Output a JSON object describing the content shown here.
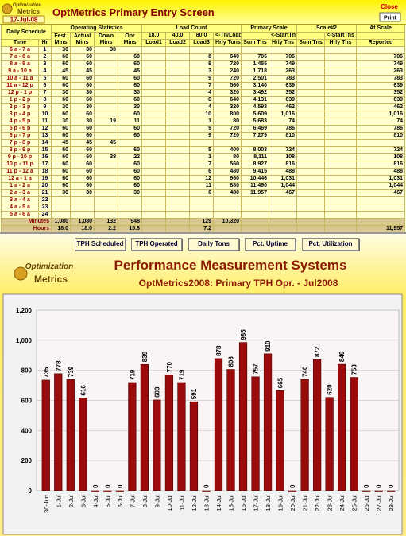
{
  "header": {
    "logo_line1": "Optimization",
    "logo_line2": "Metrics",
    "date": "17-Jul-08",
    "title": "OptMetrics Primary Entry Screen",
    "close": "Close",
    "print": "Print"
  },
  "table": {
    "groups": [
      "Daily Schedule",
      "Operating Statistics",
      "Load Count",
      "Primary Scale",
      "Scale#2",
      "At Scale"
    ],
    "load_values": [
      "18.0",
      "40.0",
      "80.0"
    ],
    "arrows": [
      "<-Tn/Load",
      "<-StartTns",
      "<-StartTns"
    ],
    "columns": [
      "Time",
      "Hr",
      "Fest. Mins",
      "Actual Mins",
      "Down Mins",
      "Opr Mins",
      "Load1",
      "Load2",
      "Load3",
      "Hrly Tons",
      "Sum Tns",
      "Hrly Tns",
      "Sum Tns",
      "Hrly Tns",
      "Reported"
    ],
    "rows": [
      [
        "6 a - 7 a",
        "1",
        "30",
        "30",
        "30",
        null,
        null,
        null,
        null,
        null,
        null,
        null,
        null,
        null,
        null
      ],
      [
        "7 a - 8 a",
        "2",
        "60",
        "60",
        null,
        "60",
        null,
        null,
        "8",
        "640",
        "706",
        "706",
        null,
        null,
        "706"
      ],
      [
        "8 a - 9 a",
        "3",
        "60",
        "60",
        null,
        "60",
        null,
        null,
        "9",
        "720",
        "1,455",
        "749",
        null,
        null,
        "749"
      ],
      [
        "9 a - 10 a",
        "4",
        "45",
        "45",
        null,
        "45",
        null,
        null,
        "3",
        "240",
        "1,718",
        "263",
        null,
        null,
        "263"
      ],
      [
        "10 a - 11 a",
        "5",
        "60",
        "60",
        null,
        "60",
        null,
        null,
        "9",
        "720",
        "2,501",
        "783",
        null,
        null,
        "783"
      ],
      [
        "11 a - 12 p",
        "6",
        "60",
        "60",
        null,
        "60",
        null,
        null,
        "7",
        "560",
        "3,140",
        "639",
        null,
        null,
        "639"
      ],
      [
        "12 p - 1 p",
        "7",
        "30",
        "30",
        null,
        "30",
        null,
        null,
        "4",
        "320",
        "3,492",
        "352",
        null,
        null,
        "352"
      ],
      [
        "1 p - 2 p",
        "8",
        "60",
        "60",
        null,
        "60",
        null,
        null,
        "8",
        "640",
        "4,131",
        "639",
        null,
        null,
        "639"
      ],
      [
        "2 p - 3 p",
        "9",
        "30",
        "30",
        null,
        "30",
        null,
        null,
        "4",
        "320",
        "4,593",
        "462",
        null,
        null,
        "462"
      ],
      [
        "3 p - 4 p",
        "10",
        "60",
        "60",
        null,
        "60",
        null,
        null,
        "10",
        "800",
        "5,609",
        "1,016",
        null,
        null,
        "1,016"
      ],
      [
        "4 p - 5 p",
        "11",
        "30",
        "30",
        "19",
        "11",
        null,
        null,
        "1",
        "80",
        "5,683",
        "74",
        null,
        null,
        "74"
      ],
      [
        "5 p - 6 p",
        "12",
        "60",
        "60",
        null,
        "60",
        null,
        null,
        "9",
        "720",
        "6,469",
        "786",
        null,
        null,
        "786"
      ],
      [
        "6 p - 7 p",
        "13",
        "60",
        "60",
        null,
        "60",
        null,
        null,
        "9",
        "720",
        "7,279",
        "810",
        null,
        null,
        "810"
      ],
      [
        "7 p - 8 p",
        "14",
        "45",
        "45",
        "45",
        null,
        null,
        null,
        null,
        null,
        null,
        null,
        null,
        null,
        null
      ],
      [
        "8 p - 9 p",
        "15",
        "60",
        "60",
        null,
        "60",
        null,
        null,
        "5",
        "400",
        "8,003",
        "724",
        null,
        null,
        "724"
      ],
      [
        "9 p - 10 p",
        "16",
        "60",
        "60",
        "38",
        "22",
        null,
        null,
        "1",
        "80",
        "8,111",
        "108",
        null,
        null,
        "108"
      ],
      [
        "10 p - 11 p",
        "17",
        "60",
        "60",
        null,
        "60",
        null,
        null,
        "7",
        "560",
        "8,927",
        "816",
        null,
        null,
        "816"
      ],
      [
        "11 p - 12 a",
        "18",
        "60",
        "60",
        null,
        "60",
        null,
        null,
        "6",
        "480",
        "9,415",
        "488",
        null,
        null,
        "488"
      ],
      [
        "12 a - 1 a",
        "19",
        "60",
        "60",
        null,
        "60",
        null,
        null,
        "12",
        "960",
        "10,446",
        "1,031",
        null,
        null,
        "1,031"
      ],
      [
        "1 a - 2 a",
        "20",
        "60",
        "60",
        null,
        "60",
        null,
        null,
        "11",
        "880",
        "11,490",
        "1,044",
        null,
        null,
        "1,044"
      ],
      [
        "2 a - 3 a",
        "21",
        "30",
        "30",
        null,
        "30",
        null,
        null,
        "6",
        "480",
        "11,957",
        "467",
        null,
        null,
        "467"
      ],
      [
        "3 a - 4 a",
        "22",
        null,
        null,
        null,
        null,
        null,
        null,
        null,
        null,
        null,
        null,
        null,
        null,
        null
      ],
      [
        "4 a - 5 a",
        "23",
        null,
        null,
        null,
        null,
        null,
        null,
        null,
        null,
        null,
        null,
        null,
        null,
        null
      ],
      [
        "5 a - 6 a",
        "24",
        null,
        null,
        null,
        null,
        null,
        null,
        null,
        null,
        null,
        null,
        null,
        null,
        null
      ]
    ],
    "totals": [
      {
        "label": "Minutes",
        "cells": [
          "1,080",
          "1,080",
          "132",
          "948",
          null,
          null,
          "129",
          "10,320",
          null,
          null,
          null,
          null,
          null
        ]
      },
      {
        "label": "Hours",
        "cells": [
          "18.0",
          "18.0",
          "2.2",
          "15.8",
          null,
          null,
          "7.2",
          null,
          null,
          null,
          null,
          null,
          "11,957"
        ]
      }
    ]
  },
  "nav": [
    "TPH Scheduled",
    "TPH Operated",
    "Daily Tons",
    "Pct. Uptime",
    "Pct. Utilization"
  ],
  "chart_logo": {
    "line1": "Optimization",
    "line2": "Metrics"
  },
  "chart_data": {
    "type": "bar",
    "title": "Performance Measurement Systems",
    "subtitle": "OptMetrics2008: Primary TPH Opr. -  Jul2008",
    "categories": [
      "30-Jun",
      "1-Jul",
      "2-Jul",
      "3-Jul",
      "4-Jul",
      "5-Jul",
      "6-Jul",
      "7-Jul",
      "8-Jul",
      "9-Jul",
      "10-Jul",
      "11-Jul",
      "12-Jul",
      "13-Jul",
      "14-Jul",
      "15-Jul",
      "16-Jul",
      "17-Jul",
      "18-Jul",
      "19-Jul",
      "20-Jul",
      "21-Jul",
      "22-Jul",
      "23-Jul",
      "24-Jul",
      "25-Jul",
      "26-Jul",
      "27-Jul",
      "28-Jul"
    ],
    "values": [
      735,
      778,
      739,
      616,
      0,
      0,
      0,
      719,
      839,
      603,
      770,
      719,
      591,
      0,
      878,
      806,
      985,
      757,
      910,
      665,
      0,
      740,
      872,
      620,
      840,
      753,
      0,
      0,
      0
    ],
    "color": "#9b0b0b",
    "ylim": [
      0,
      1200
    ],
    "yticks": [
      0,
      200,
      400,
      600,
      800,
      {
        "value": 1000,
        "label": "1,000"
      },
      {
        "value": 1200,
        "label": "1,200"
      }
    ],
    "grid": true
  }
}
